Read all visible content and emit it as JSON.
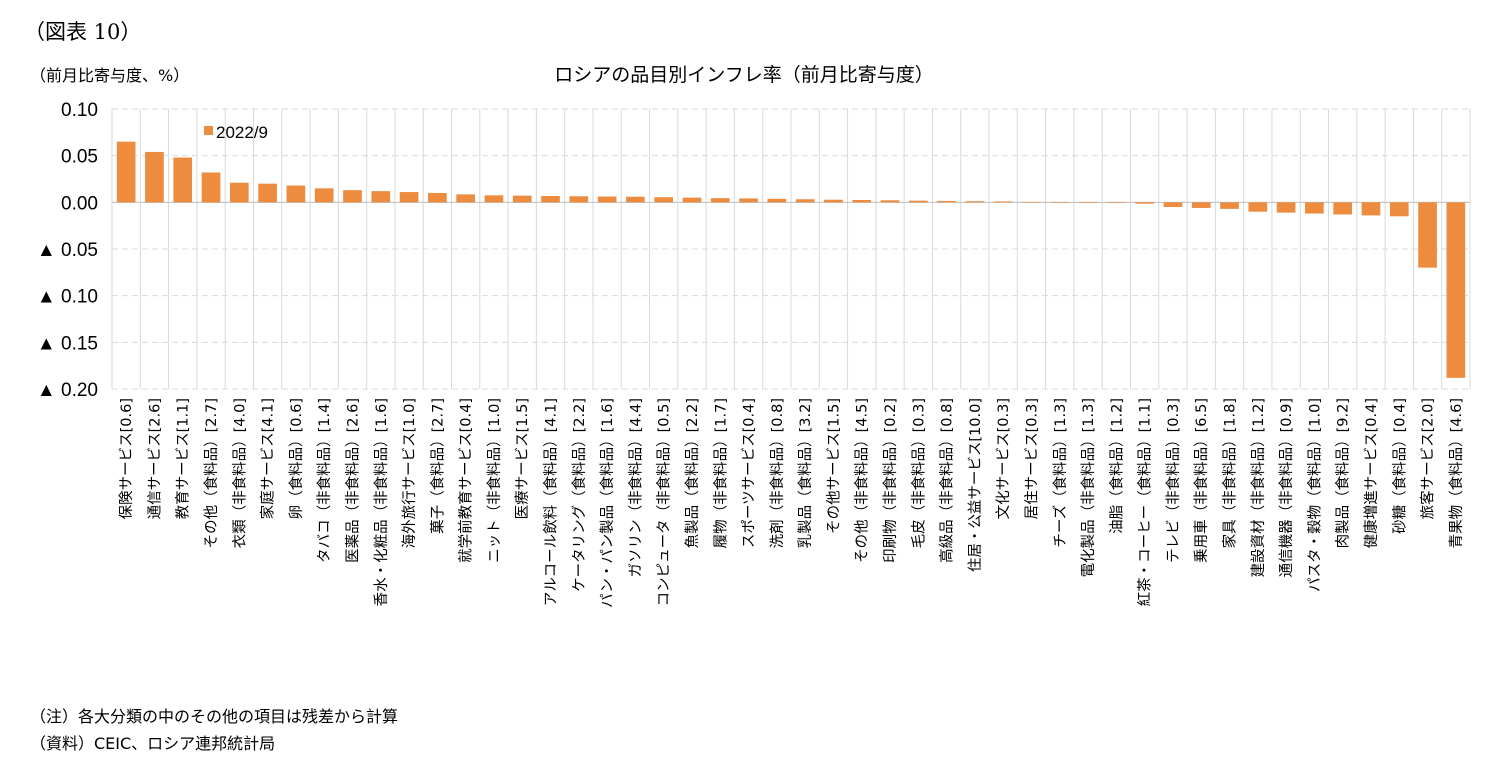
{
  "figure_label": "（図表 10）",
  "unit_label": "（前月比寄与度、%）",
  "notes": {
    "note": "（注）各大分類の中のその他の項目は残差から計算",
    "source": "（資料）CEIC、ロシア連邦統計局"
  },
  "colors": {
    "bar": "#ED8B3F",
    "grid": "#D9D9D9",
    "axis": "#BFBFBF"
  },
  "chart_data": {
    "type": "bar",
    "title": "ロシアの品目別インフレ率（前月比寄与度）",
    "ylabel": "（前月比寄与度、%）",
    "ylim": [
      -0.2,
      0.1
    ],
    "yticks": [
      0.1,
      0.05,
      0.0,
      -0.05,
      -0.1,
      -0.15,
      -0.2
    ],
    "ytick_labels": [
      "0.10",
      "0.05",
      "0.00",
      "▲ 0.05",
      "▲ 0.10",
      "▲ 0.15",
      "▲ 0.20"
    ],
    "grid": true,
    "legend": "top-left",
    "categories": [
      "保険サービス[0.6]",
      "通信サービス[2.6]",
      "教育サービス[1.1]",
      "その他（食料品）[2.7]",
      "衣類（非食料品）[4.0]",
      "家庭サービス[4.1]",
      "卵（食料品）[0.6]",
      "タバコ（非食料品）[1.4]",
      "医薬品（非食料品）[2.6]",
      "香水・化粧品（非食料品）[1.6]",
      "海外旅行サービス[1.0]",
      "菓子（食料品）[2.7]",
      "就学前教育サービス[0.4]",
      "ニット（非食料品）[1.0]",
      "医療サービス[1.5]",
      "アルコール飲料（食料品）[4.1]",
      "ケータリング（食料品）[2.2]",
      "パン・パン製品（食料品）[1.6]",
      "ガソリン（非食料品）[4.4]",
      "コンピュータ（非食料品）[0.5]",
      "魚製品（食料品）[2.2]",
      "履物（非食料品）[1.7]",
      "スポーツサービス[0.4]",
      "洗剤（非食料品）[0.8]",
      "乳製品（食料品）[3.2]",
      "その他サービス[1.5]",
      "その他（非食料品）[4.5]",
      "印刷物（非食料品）[0.2]",
      "毛皮（非食料品）[0.3]",
      "高級品（非食料品）[0.8]",
      "住居・公益サービス[10.0]",
      "文化サービス[0.3]",
      "居住サービス[0.3]",
      "チーズ（食料品）[1.3]",
      "電化製品（非食料品）[1.3]",
      "油脂（食料品）[1.2]",
      "紅茶・コーヒー（食料品）[1.1]",
      "テレビ（非食料品）[0.3]",
      "乗用車（非食料品）[6.5]",
      "家具（非食料品）[1.8]",
      "建設資材（非食料品）[1.2]",
      "通信機器（非食料品）[0.9]",
      "パスタ・穀物（食料品）[1.0]",
      "肉製品（食料品）[9.2]",
      "健康増進サービス[0.4]",
      "砂糖（食料品）[0.4]",
      "旅客サービス[2.0]",
      "青果物（食料品）[4.6]"
    ],
    "series": [
      {
        "name": "2022/9",
        "values": [
          0.065,
          0.054,
          0.048,
          0.032,
          0.021,
          0.02,
          0.018,
          0.015,
          0.013,
          0.012,
          0.011,
          0.01,
          0.0085,
          0.0075,
          0.0072,
          0.0068,
          0.0065,
          0.0062,
          0.006,
          0.0055,
          0.005,
          0.0045,
          0.0042,
          0.0038,
          0.0033,
          0.0028,
          0.0025,
          0.0022,
          0.0018,
          0.0015,
          0.0012,
          0.001,
          0.0005,
          0.0002,
          -0.0002,
          -0.0005,
          -0.0015,
          -0.005,
          -0.006,
          -0.007,
          -0.01,
          -0.011,
          -0.012,
          -0.013,
          -0.014,
          -0.015,
          -0.07,
          -0.188
        ]
      }
    ]
  }
}
